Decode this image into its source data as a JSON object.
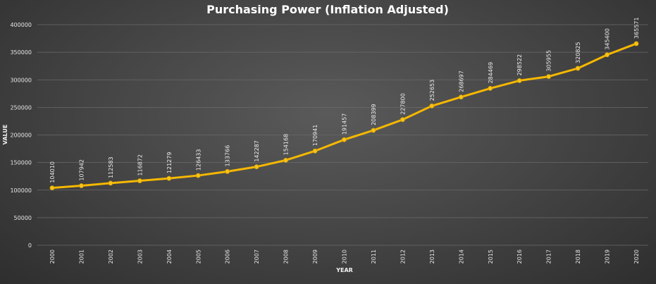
{
  "chart_data": {
    "type": "line",
    "title": "Purchasing Power (Inflation Adjusted)",
    "xlabel": "YEAR",
    "ylabel": "VALUE",
    "ylim": [
      0,
      400000
    ],
    "yticks": [
      "0",
      "50000",
      "100000",
      "150000",
      "200000",
      "250000",
      "300000",
      "350000",
      "400000"
    ],
    "grid": "horizontal",
    "categories": [
      "2000",
      "2001",
      "2002",
      "2003",
      "2004",
      "2005",
      "2006",
      "2007",
      "2008",
      "2009",
      "2010",
      "2011",
      "2012",
      "2013",
      "2014",
      "2015",
      "2016",
      "2017",
      "2018",
      "2019",
      "2020"
    ],
    "values": [
      104010,
      107942,
      112583,
      116872,
      121279,
      126433,
      133766,
      142287,
      154168,
      170941,
      191457,
      208399,
      227800,
      252653,
      268697,
      284469,
      298522,
      305955,
      320825,
      345400,
      365571
    ],
    "colors": {
      "line": "#f5b800",
      "marker": "#f7c21a",
      "grid": "#6a6a6a",
      "text": "#ffffff"
    }
  }
}
